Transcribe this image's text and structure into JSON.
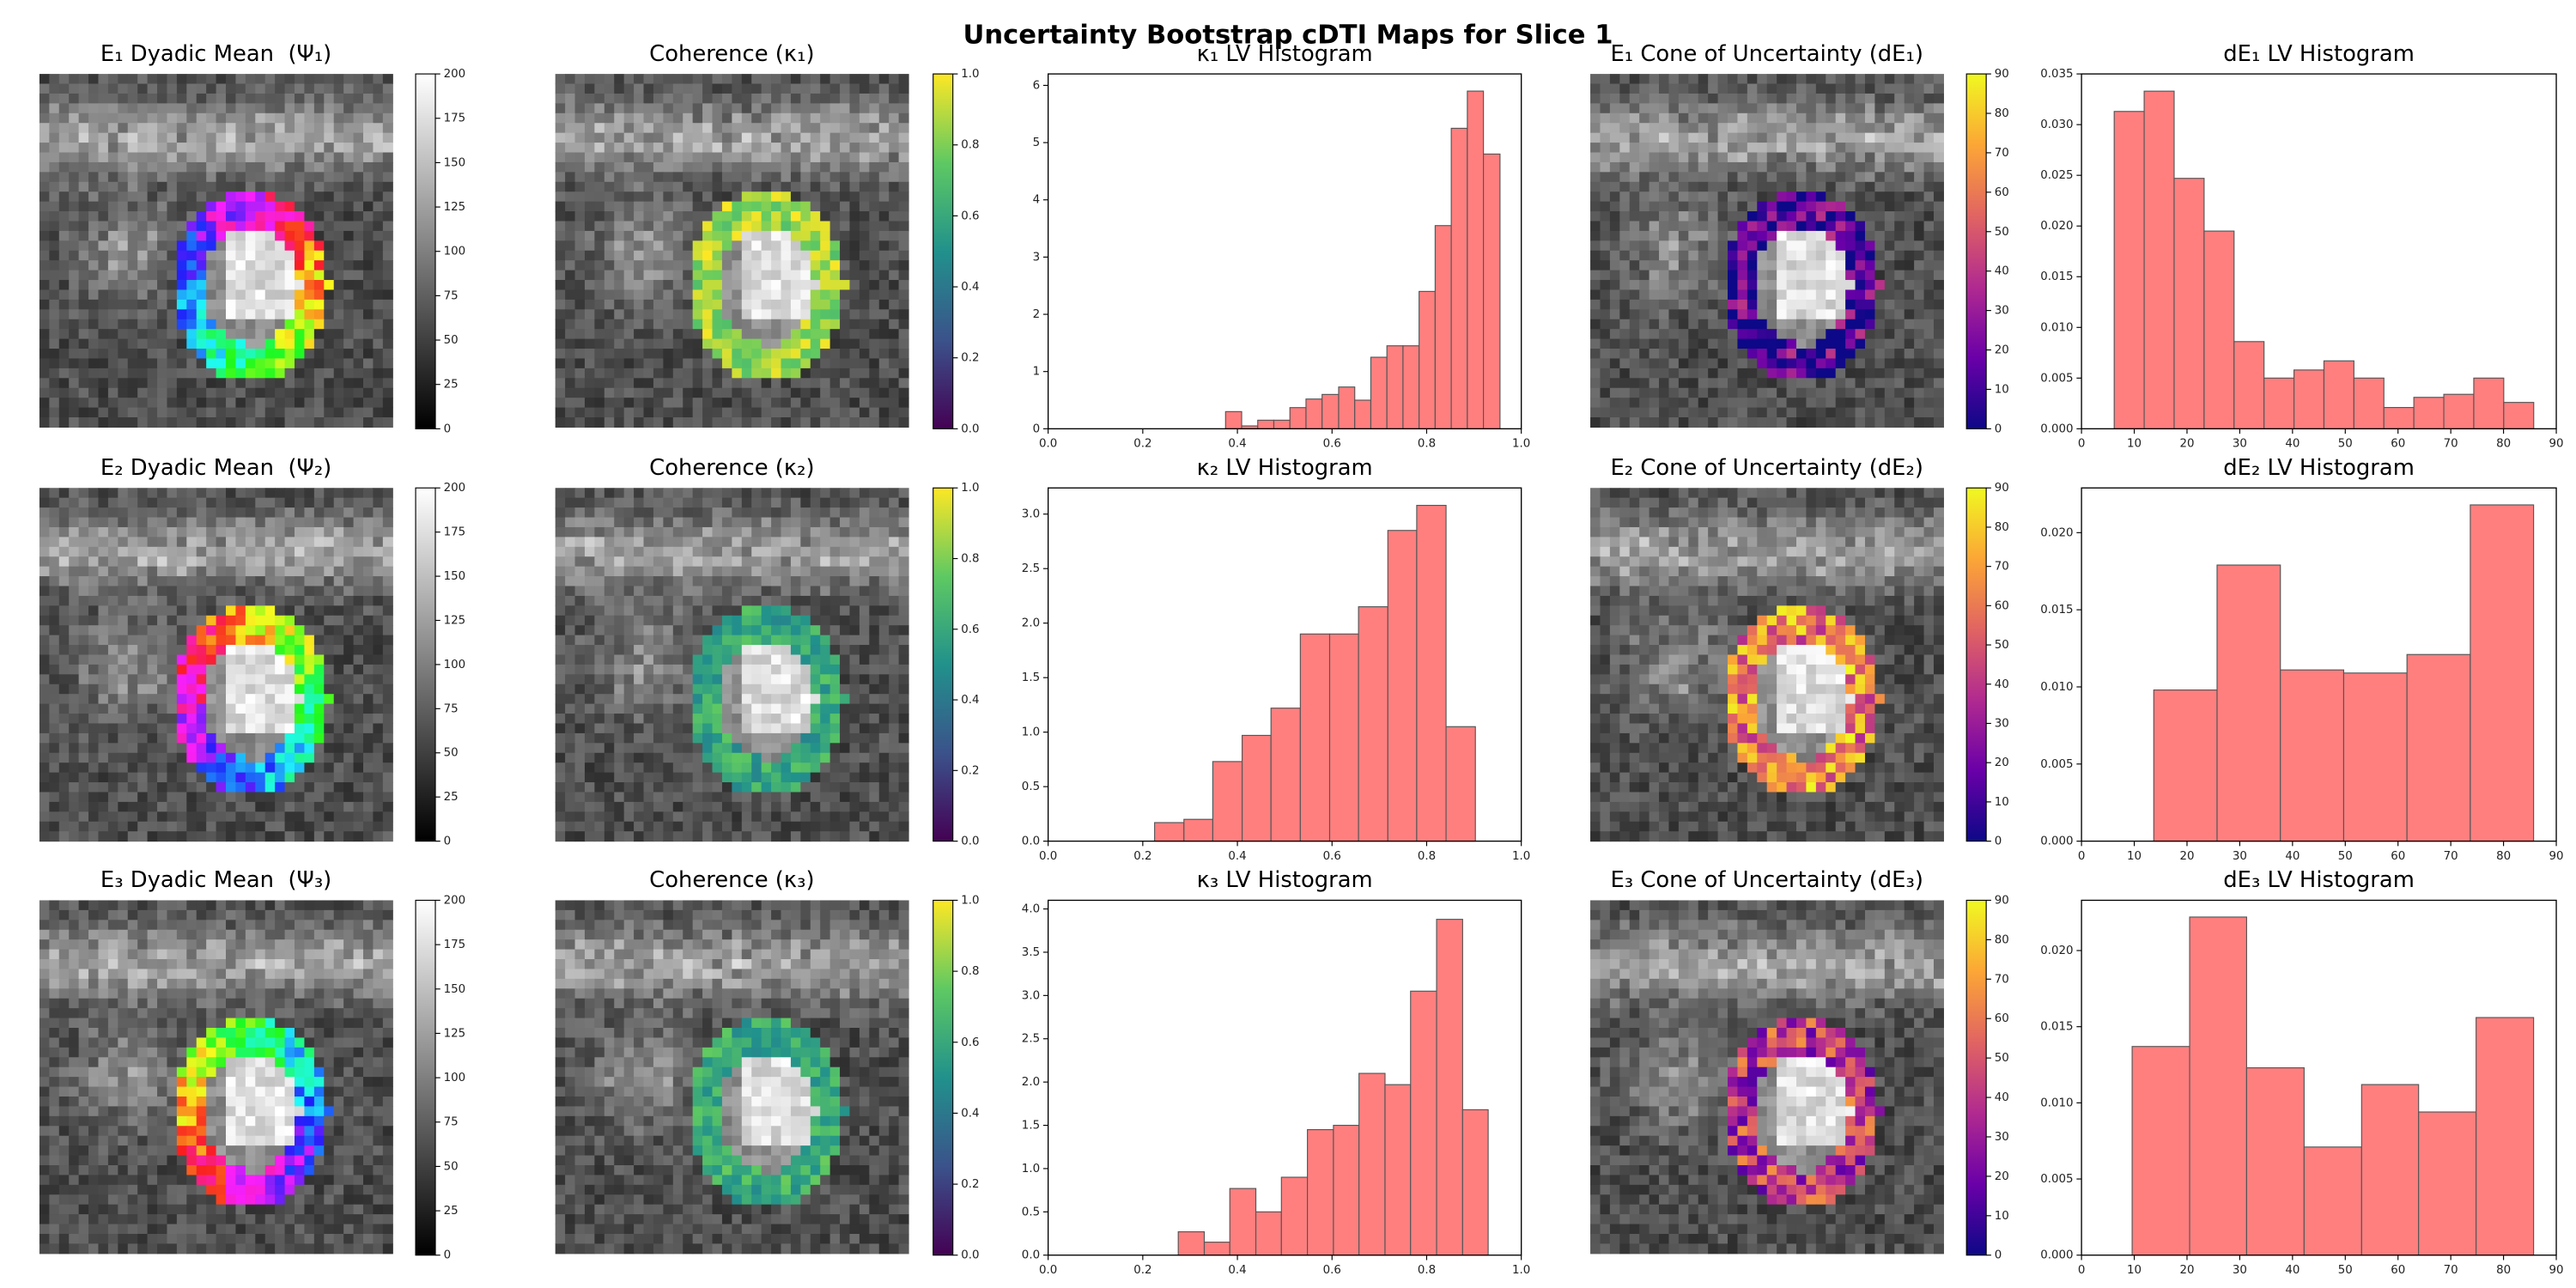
{
  "title": "Uncertainty Bootstrap cDTI Maps for Slice 1",
  "chart_data": [
    {
      "type": "image",
      "title": "E₁ Dyadic Mean  (Ψ₁)",
      "colormap": "gray",
      "clim": [
        0,
        200
      ],
      "cticks": [
        0,
        25,
        50,
        75,
        100,
        125,
        150,
        175,
        200
      ]
    },
    {
      "type": "image",
      "title": "Coherence (κ₁)",
      "colormap": "viridis",
      "clim": [
        0,
        1
      ],
      "cticks": [
        {
          "value": 0,
          "label": "0.0"
        },
        0.2,
        0.4,
        0.6,
        0.8,
        {
          "value": 1,
          "label": "1.0"
        }
      ]
    },
    {
      "type": "histogram",
      "title": "κ₁ LV Histogram",
      "color": "#ff7f7f",
      "bins": [
        0.375,
        0.409,
        0.443,
        0.477,
        0.511,
        0.545,
        0.579,
        0.614,
        0.648,
        0.682,
        0.716,
        0.75,
        0.784,
        0.818,
        0.852,
        0.886,
        0.92,
        0.955
      ],
      "values": [
        0.3,
        0.05,
        0.15,
        0.15,
        0.37,
        0.52,
        0.6,
        0.73,
        0.5,
        1.25,
        1.45,
        1.45,
        2.4,
        3.55,
        5.25,
        5.9,
        4.8
      ],
      "xlim": [
        0,
        1
      ],
      "ylim": [
        0,
        6.2
      ],
      "xticks": [
        {
          "value": 0,
          "label": "0.0"
        },
        0.2,
        0.4,
        0.6,
        0.8,
        {
          "value": 1,
          "label": "1.0"
        }
      ],
      "yticks": [
        0,
        1,
        2,
        3,
        4,
        5,
        6
      ]
    },
    {
      "type": "image",
      "title": "E₁ Cone of Uncertainty (dE₁)",
      "colormap": "plasma",
      "clim": [
        0,
        90
      ],
      "cticks": [
        0,
        10,
        20,
        30,
        40,
        50,
        60,
        70,
        80,
        90
      ]
    },
    {
      "type": "histogram",
      "title": "dE₁ LV Histogram",
      "color": "#ff7f7f",
      "bins": [
        6.2,
        11.88,
        17.56,
        23.24,
        28.92,
        34.6,
        40.28,
        45.96,
        51.64,
        57.32,
        63.0,
        68.68,
        74.36,
        80.04,
        85.72
      ],
      "values": [
        0.0313,
        0.0333,
        0.0247,
        0.0195,
        0.0086,
        0.005,
        0.0058,
        0.0067,
        0.005,
        0.0021,
        0.0031,
        0.0034,
        0.005,
        0.0026
      ],
      "xlim": [
        0,
        90
      ],
      "ylim": [
        0,
        0.035
      ],
      "xticks": [
        0,
        10,
        20,
        30,
        40,
        50,
        60,
        70,
        80,
        90
      ],
      "yticks": [
        {
          "value": 0,
          "label": "0.000"
        },
        {
          "value": 0.005,
          "label": "0.005"
        },
        {
          "value": 0.01,
          "label": "0.010"
        },
        {
          "value": 0.015,
          "label": "0.015"
        },
        {
          "value": 0.02,
          "label": "0.020"
        },
        {
          "value": 0.025,
          "label": "0.025"
        },
        {
          "value": 0.03,
          "label": "0.030"
        },
        {
          "value": 0.035,
          "label": "0.035"
        }
      ]
    },
    {
      "type": "image",
      "title": "E₂ Dyadic Mean  (Ψ₂)",
      "colormap": "gray",
      "clim": [
        0,
        200
      ],
      "cticks": [
        0,
        25,
        50,
        75,
        100,
        125,
        150,
        175,
        200
      ]
    },
    {
      "type": "image",
      "title": "Coherence (κ₂)",
      "colormap": "viridis",
      "clim": [
        0,
        1
      ],
      "cticks": [
        {
          "value": 0,
          "label": "0.0"
        },
        0.2,
        0.4,
        0.6,
        0.8,
        {
          "value": 1,
          "label": "1.0"
        }
      ]
    },
    {
      "type": "histogram",
      "title": "κ₂ LV Histogram",
      "color": "#ff7f7f",
      "bins": [
        0.225,
        0.287,
        0.348,
        0.41,
        0.471,
        0.533,
        0.595,
        0.656,
        0.718,
        0.779,
        0.841,
        0.903
      ],
      "values": [
        0.17,
        0.2,
        0.73,
        0.97,
        1.22,
        1.9,
        1.9,
        2.15,
        2.85,
        3.08,
        1.05
      ],
      "xlim": [
        0,
        1
      ],
      "ylim": [
        0,
        3.24
      ],
      "xticks": [
        {
          "value": 0,
          "label": "0.0"
        },
        0.2,
        0.4,
        0.6,
        0.8,
        {
          "value": 1,
          "label": "1.0"
        }
      ],
      "yticks": [
        {
          "value": 0,
          "label": "0.0"
        },
        0.5,
        {
          "value": 1,
          "label": "1.0"
        },
        1.5,
        {
          "value": 2,
          "label": "2.0"
        },
        2.5,
        {
          "value": 3,
          "label": "3.0"
        }
      ]
    },
    {
      "type": "image",
      "title": "E₂ Cone of Uncertainty (dE₂)",
      "colormap": "plasma",
      "clim": [
        0,
        90
      ],
      "cticks": [
        0,
        10,
        20,
        30,
        40,
        50,
        60,
        70,
        80,
        90
      ]
    },
    {
      "type": "histogram",
      "title": "dE₂ LV Histogram",
      "color": "#ff7f7f",
      "bins": [
        13.7,
        25.7,
        37.7,
        49.7,
        61.7,
        73.7,
        85.7
      ],
      "values": [
        0.0098,
        0.0179,
        0.0111,
        0.0109,
        0.0121,
        0.0218
      ],
      "xlim": [
        0,
        90
      ],
      "ylim": [
        0,
        0.0229
      ],
      "xticks": [
        0,
        10,
        20,
        30,
        40,
        50,
        60,
        70,
        80,
        90
      ],
      "yticks": [
        {
          "value": 0,
          "label": "0.000"
        },
        {
          "value": 0.005,
          "label": "0.005"
        },
        {
          "value": 0.01,
          "label": "0.010"
        },
        {
          "value": 0.015,
          "label": "0.015"
        },
        {
          "value": 0.02,
          "label": "0.020"
        }
      ]
    },
    {
      "type": "image",
      "title": "E₃ Dyadic Mean  (Ψ₃)",
      "colormap": "gray",
      "clim": [
        0,
        200
      ],
      "cticks": [
        0,
        25,
        50,
        75,
        100,
        125,
        150,
        175,
        200
      ]
    },
    {
      "type": "image",
      "title": "Coherence (κ₃)",
      "colormap": "viridis",
      "clim": [
        0,
        1
      ],
      "cticks": [
        {
          "value": 0,
          "label": "0.0"
        },
        0.2,
        0.4,
        0.6,
        0.8,
        {
          "value": 1,
          "label": "1.0"
        }
      ]
    },
    {
      "type": "histogram",
      "title": "κ₃ LV Histogram",
      "color": "#ff7f7f",
      "bins": [
        0.275,
        0.33,
        0.384,
        0.439,
        0.493,
        0.548,
        0.603,
        0.657,
        0.712,
        0.766,
        0.821,
        0.876,
        0.93
      ],
      "values": [
        0.27,
        0.15,
        0.77,
        0.5,
        0.9,
        1.45,
        1.5,
        2.1,
        1.97,
        3.05,
        3.88,
        1.68
      ],
      "xlim": [
        0,
        1
      ],
      "ylim": [
        0,
        4.1
      ],
      "xticks": [
        {
          "value": 0,
          "label": "0.0"
        },
        0.2,
        0.4,
        0.6,
        0.8,
        {
          "value": 1,
          "label": "1.0"
        }
      ],
      "yticks": [
        {
          "value": 0,
          "label": "0.0"
        },
        0.5,
        {
          "value": 1,
          "label": "1.0"
        },
        1.5,
        {
          "value": 2,
          "label": "2.0"
        },
        2.5,
        {
          "value": 3,
          "label": "3.0"
        },
        3.5,
        {
          "value": 4,
          "label": "4.0"
        }
      ]
    },
    {
      "type": "image",
      "title": "E₃ Cone of Uncertainty (dE₃)",
      "colormap": "plasma",
      "clim": [
        0,
        90
      ],
      "cticks": [
        0,
        10,
        20,
        30,
        40,
        50,
        60,
        70,
        80,
        90
      ]
    },
    {
      "type": "histogram",
      "title": "dE₃ LV Histogram",
      "color": "#ff7f7f",
      "bins": [
        9.6,
        20.5,
        31.3,
        42.2,
        53.1,
        63.9,
        74.8,
        85.7
      ],
      "values": [
        0.0137,
        0.0222,
        0.0123,
        0.0071,
        0.0112,
        0.0094,
        0.0156
      ],
      "xlim": [
        0,
        90
      ],
      "ylim": [
        0,
        0.0233
      ],
      "xticks": [
        0,
        10,
        20,
        30,
        40,
        50,
        60,
        70,
        80,
        90
      ],
      "yticks": [
        {
          "value": 0,
          "label": "0.000"
        },
        {
          "value": 0.005,
          "label": "0.005"
        },
        {
          "value": 0.01,
          "label": "0.010"
        },
        {
          "value": 0.015,
          "label": "0.015"
        },
        {
          "value": 0.02,
          "label": "0.020"
        }
      ]
    }
  ]
}
